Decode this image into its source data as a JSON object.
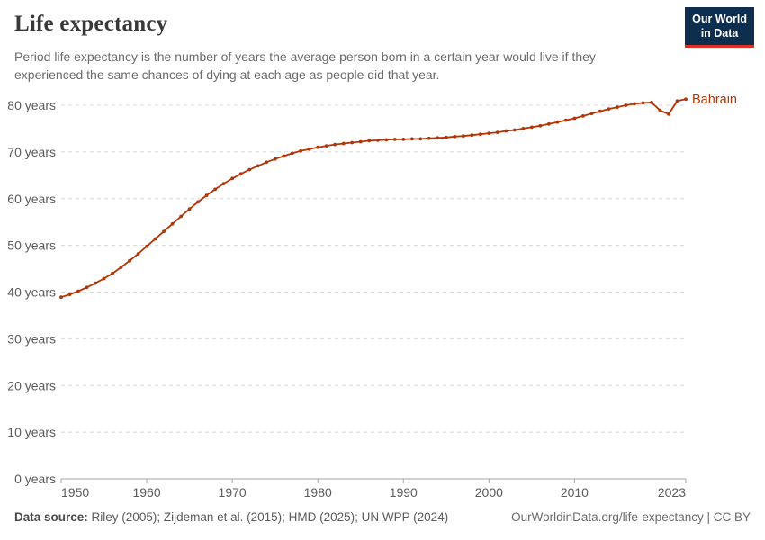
{
  "header": {
    "title": "Life expectancy",
    "subtitle": "Period life expectancy is the number of years the average person born in a certain year would live if they experienced the same chances of dying at each age as people did that year.",
    "logo": {
      "line1": "Our World",
      "line2": "in Data"
    }
  },
  "chart_data": {
    "type": "line",
    "title": "Life expectancy",
    "entity": "Bahrain",
    "end_label": "Bahrain",
    "xlabel": "",
    "ylabel": "",
    "xlim": [
      1950,
      2023
    ],
    "ylim": [
      0,
      80
    ],
    "grid": "dashed-horizontal",
    "x": [
      1950,
      1951,
      1952,
      1953,
      1954,
      1955,
      1956,
      1957,
      1958,
      1959,
      1960,
      1961,
      1962,
      1963,
      1964,
      1965,
      1966,
      1967,
      1968,
      1969,
      1970,
      1971,
      1972,
      1973,
      1974,
      1975,
      1976,
      1977,
      1978,
      1979,
      1980,
      1981,
      1982,
      1983,
      1984,
      1985,
      1986,
      1987,
      1988,
      1989,
      1990,
      1991,
      1992,
      1993,
      1994,
      1995,
      1996,
      1997,
      1998,
      1999,
      2000,
      2001,
      2002,
      2003,
      2004,
      2005,
      2006,
      2007,
      2008,
      2009,
      2010,
      2011,
      2012,
      2013,
      2014,
      2015,
      2016,
      2017,
      2018,
      2019,
      2020,
      2021,
      2022,
      2023
    ],
    "series": [
      {
        "name": "Bahrain",
        "color": "#b13507",
        "values": [
          38.9,
          39.5,
          40.2,
          41.0,
          41.9,
          42.9,
          44.0,
          45.3,
          46.7,
          48.2,
          49.8,
          51.4,
          53.0,
          54.6,
          56.2,
          57.8,
          59.3,
          60.7,
          62.0,
          63.2,
          64.3,
          65.3,
          66.2,
          67.0,
          67.8,
          68.5,
          69.1,
          69.7,
          70.2,
          70.6,
          71.0,
          71.3,
          71.6,
          71.8,
          72.0,
          72.2,
          72.4,
          72.5,
          72.6,
          72.7,
          72.7,
          72.8,
          72.8,
          72.9,
          73.0,
          73.1,
          73.3,
          73.4,
          73.6,
          73.8,
          74.0,
          74.2,
          74.5,
          74.7,
          75.0,
          75.3,
          75.6,
          76.0,
          76.4,
          76.8,
          77.2,
          77.7,
          78.2,
          78.7,
          79.2,
          79.6,
          80.0,
          80.3,
          80.5,
          80.6,
          78.9,
          78.1,
          80.9,
          81.3
        ]
      }
    ],
    "y_ticks": [
      {
        "value": 0,
        "label": "0 years"
      },
      {
        "value": 10,
        "label": "10 years"
      },
      {
        "value": 20,
        "label": "20 years"
      },
      {
        "value": 30,
        "label": "30 years"
      },
      {
        "value": 40,
        "label": "40 years"
      },
      {
        "value": 50,
        "label": "50 years"
      },
      {
        "value": 60,
        "label": "60 years"
      },
      {
        "value": 70,
        "label": "70 years"
      },
      {
        "value": 80,
        "label": "80 years"
      }
    ],
    "x_ticks": [
      {
        "value": 1950,
        "label": "1950"
      },
      {
        "value": 1960,
        "label": "1960"
      },
      {
        "value": 1970,
        "label": "1970"
      },
      {
        "value": 1980,
        "label": "1980"
      },
      {
        "value": 1990,
        "label": "1990"
      },
      {
        "value": 2000,
        "label": "2000"
      },
      {
        "value": 2010,
        "label": "2010"
      },
      {
        "value": 2023,
        "label": "2023"
      }
    ]
  },
  "footer": {
    "source_label": "Data source:",
    "source_text": "Riley (2005); Zijdeman et al. (2015); HMD (2025); UN WPP (2024)",
    "credit": "OurWorldinData.org/life-expectancy | CC BY"
  },
  "colors": {
    "line": "#b13507",
    "grid": "#d8d8d8",
    "axis": "#a5a5a5",
    "tick_text": "#5b5b5b",
    "logo_bg": "#0d2e4f",
    "logo_bar": "#dc3228"
  }
}
